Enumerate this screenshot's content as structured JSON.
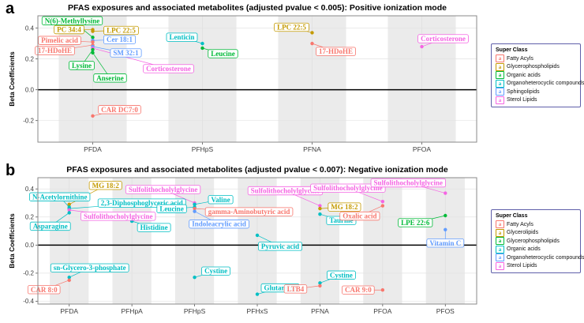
{
  "chart_data": [
    {
      "type": "scatter",
      "panel_letter": "a",
      "title": "PFAS exposures and associated metabolites (adjusted pvalue < 0.005): Positive ionization mode",
      "ylabel": "Beta Coefficients",
      "ylim": [
        -0.34,
        0.48
      ],
      "yticks": [
        0.4,
        0.2,
        0.0,
        -0.2
      ],
      "categories": [
        "PFDA",
        "PFHpS",
        "PFNA",
        "PFOA"
      ],
      "grid": "light horizontal and vertical guides, gray column bands per category, black zero line",
      "legend": {
        "title": "Super Class",
        "position": "right",
        "entries": [
          {
            "label": "Fatty Acyls",
            "color": "#F8766D"
          },
          {
            "label": "Glycerophospholipids",
            "color": "#C49A00"
          },
          {
            "label": "Organic acids",
            "color": "#00BA38"
          },
          {
            "label": "Organoheterocyclic compounds",
            "color": "#00BFC4"
          },
          {
            "label": "Sphingolipids",
            "color": "#619CFF"
          },
          {
            "label": "Sterol Lipids",
            "color": "#F564E3"
          }
        ]
      },
      "points": [
        {
          "label": "PC 34:4",
          "super_class": "Glycerophospholipids",
          "category": "PFDA",
          "beta": 0.39,
          "label_offset": [
            -30,
            0
          ]
        },
        {
          "label": "LPC 22:5",
          "super_class": "Glycerophospholipids",
          "category": "PFDA",
          "beta": 0.38,
          "label_offset": [
            36,
            -1
          ]
        },
        {
          "label": "N(6)-Methyllysine",
          "super_class": "Organic acids",
          "category": "PFDA",
          "beta": 0.34,
          "label_offset": [
            -26,
            -21
          ]
        },
        {
          "label": "Cer 18:1",
          "super_class": "Sphingolipids",
          "category": "PFDA",
          "beta": 0.32,
          "label_offset": [
            34,
            -1
          ]
        },
        {
          "label": "Pimelic acid",
          "super_class": "Fatty Acyls",
          "category": "PFDA",
          "beta": 0.31,
          "label_offset": [
            -42,
            -2
          ]
        },
        {
          "label": "17-HDoHE",
          "super_class": "Fatty Acyls",
          "category": "PFDA",
          "beta": 0.29,
          "label_offset": [
            -48,
            7
          ]
        },
        {
          "label": "SM 32:1",
          "super_class": "Sphingolipids",
          "category": "PFDA",
          "beta": 0.28,
          "label_offset": [
            42,
            8
          ]
        },
        {
          "label": "Corticosterone",
          "super_class": "Sterol Lipids",
          "category": "PFDA",
          "beta": 0.27,
          "label_offset": [
            96,
            26
          ]
        },
        {
          "label": "Lysine",
          "super_class": "Organic acids",
          "category": "PFDA",
          "beta": 0.26,
          "label_offset": [
            -14,
            20
          ]
        },
        {
          "label": "Anserine",
          "super_class": "Organic acids",
          "category": "PFDA",
          "beta": 0.24,
          "label_offset": [
            22,
            32
          ]
        },
        {
          "label": "CAR DC7:0",
          "super_class": "Fatty Acyls",
          "category": "PFDA",
          "beta": -0.17,
          "label_offset": [
            34,
            -8
          ]
        },
        {
          "label": "Lenticin",
          "super_class": "Organoheterocyclic compounds",
          "category": "PFHpS",
          "beta": 0.3,
          "label_offset": [
            -26,
            -8
          ]
        },
        {
          "label": "Leucine",
          "super_class": "Organic acids",
          "category": "PFHpS",
          "beta": 0.27,
          "label_offset": [
            26,
            7
          ]
        },
        {
          "label": "LPC 22:5",
          "super_class": "Glycerophospholipids",
          "category": "PFNA",
          "beta": 0.37,
          "label_offset": [
            -26,
            -7
          ]
        },
        {
          "label": "17-HDoHE",
          "super_class": "Fatty Acyls",
          "category": "PFNA",
          "beta": 0.3,
          "label_offset": [
            30,
            10
          ]
        },
        {
          "label": "Corticosterone",
          "super_class": "Sterol Lipids",
          "category": "PFOA",
          "beta": 0.28,
          "label_offset": [
            27,
            -10
          ]
        }
      ]
    },
    {
      "type": "scatter",
      "panel_letter": "b",
      "title": "PFAS exposures and associated metabolites (adjusted pvalue < 0.007): Negative ionization mode",
      "ylabel": "Beta Coefficients",
      "ylim": [
        -0.42,
        0.48
      ],
      "yticks": [
        0.4,
        0.2,
        0.0,
        -0.2,
        -0.4
      ],
      "categories": [
        "PFDA",
        "PFHpA",
        "PFHpS",
        "PFHxS",
        "PFNA",
        "PFOA",
        "PFOS"
      ],
      "grid": "light horizontal and vertical guides, gray column bands per category, black zero line",
      "legend": {
        "title": "Super Class",
        "position": "right",
        "entries": [
          {
            "label": "Fatty Acyls",
            "color": "#F8766D"
          },
          {
            "label": "Glycerolipids",
            "color": "#C49A00"
          },
          {
            "label": "Glycerophospholipids",
            "color": "#00BA38"
          },
          {
            "label": "Organic acids",
            "color": "#00BFC4"
          },
          {
            "label": "Organoheterocyclic compounds",
            "color": "#619CFF"
          },
          {
            "label": "Sterol Lipids",
            "color": "#F564E3"
          }
        ]
      },
      "points": [
        {
          "label": "MG 18:2",
          "super_class": "Glycerolipids",
          "category": "PFDA",
          "beta": 0.29,
          "label_offset": [
            46,
            -24
          ]
        },
        {
          "label": "N-Acetylornithine",
          "super_class": "Organic acids",
          "category": "PFDA",
          "beta": 0.27,
          "label_offset": [
            -12,
            -13
          ]
        },
        {
          "label": "2,3-Diphosphoglyceric acid",
          "super_class": "Organic acids",
          "category": "PFDA",
          "beta": 0.26,
          "label_offset": [
            92,
            -7
          ]
        },
        {
          "label": "Sulfolithocholylglycine",
          "super_class": "Sterol Lipids",
          "category": "PFDA",
          "beta": 0.25,
          "label_offset": [
            62,
            8
          ]
        },
        {
          "label": "Asparagine",
          "super_class": "Organic acids",
          "category": "PFDA",
          "beta": 0.23,
          "label_offset": [
            -24,
            17
          ]
        },
        {
          "label": "sn-Glycero-3-phosphate",
          "super_class": "Organic acids",
          "category": "PFDA",
          "beta": -0.23,
          "label_offset": [
            26,
            -12
          ]
        },
        {
          "label": "CAR 8:0",
          "super_class": "Fatty Acyls",
          "category": "PFDA",
          "beta": -0.25,
          "label_offset": [
            -32,
            12
          ]
        },
        {
          "label": "Histidine",
          "super_class": "Organic acids",
          "category": "PFHpA",
          "beta": 0.17,
          "label_offset": [
            28,
            8
          ]
        },
        {
          "label": "Sulfolithocholylglycine",
          "super_class": "Sterol Lipids",
          "category": "PFHpS",
          "beta": 0.3,
          "label_offset": [
            -40,
            -17
          ]
        },
        {
          "label": "Valine",
          "super_class": "Organic acids",
          "category": "PFHpS",
          "beta": 0.29,
          "label_offset": [
            33,
            -6
          ]
        },
        {
          "label": "Leucine",
          "super_class": "Organic acids",
          "category": "PFHpS",
          "beta": 0.27,
          "label_offset": [
            -29,
            2
          ]
        },
        {
          "label": "gamma-Aminobutyric acid",
          "super_class": "Fatty Acyls",
          "category": "PFHpS",
          "beta": 0.26,
          "label_offset": [
            69,
            4
          ]
        },
        {
          "label": "Indoleacrylic acid",
          "super_class": "Organoheterocyclic compounds",
          "category": "PFHpS",
          "beta": 0.24,
          "label_offset": [
            31,
            16
          ]
        },
        {
          "label": "Cystine",
          "super_class": "Organic acids",
          "category": "PFHpS",
          "beta": -0.23,
          "label_offset": [
            27,
            -8
          ]
        },
        {
          "label": "Pyruvic acid",
          "super_class": "Organic acids",
          "category": "PFHxS",
          "beta": 0.07,
          "label_offset": [
            29,
            14
          ]
        },
        {
          "label": "Glutamine",
          "super_class": "Organic acids",
          "category": "PFHxS",
          "beta": -0.35,
          "label_offset": [
            29,
            -8
          ]
        },
        {
          "label": "Sulfolithocholylglycine",
          "super_class": "Sterol Lipids",
          "category": "PFNA",
          "beta": 0.28,
          "label_offset": [
            -44,
            -19
          ]
        },
        {
          "label": "MG 18:2",
          "super_class": "Glycerolipids",
          "category": "PFNA",
          "beta": 0.26,
          "label_offset": [
            31,
            -2
          ]
        },
        {
          "label": "Taurine",
          "super_class": "Organic acids",
          "category": "PFNA",
          "beta": 0.22,
          "label_offset": [
            27,
            8
          ]
        },
        {
          "label": "Cystine",
          "super_class": "Organic acids",
          "category": "PFNA",
          "beta": -0.27,
          "label_offset": [
            27,
            -10
          ]
        },
        {
          "label": "LTB4",
          "super_class": "Fatty Acyls",
          "category": "PFNA",
          "beta": -0.29,
          "label_offset": [
            -31,
            4
          ]
        },
        {
          "label": "Sulfolithocholylglycine",
          "super_class": "Sterol Lipids",
          "category": "PFOA",
          "beta": 0.31,
          "label_offset": [
            -44,
            -17
          ]
        },
        {
          "label": "Oxalic acid",
          "super_class": "Fatty Acyls",
          "category": "PFOA",
          "beta": 0.28,
          "label_offset": [
            -29,
            13
          ]
        },
        {
          "label": "CAR 9:0",
          "super_class": "Fatty Acyls",
          "category": "PFOA",
          "beta": -0.32,
          "label_offset": [
            -31,
            0
          ]
        },
        {
          "label": "Sulfolithocholylglycine",
          "super_class": "Sterol Lipids",
          "category": "PFOS",
          "beta": 0.37,
          "label_offset": [
            -47,
            -13
          ]
        },
        {
          "label": "LPE 22:6",
          "super_class": "Glycerophospholipids",
          "category": "PFOS",
          "beta": 0.21,
          "label_offset": [
            -38,
            9
          ]
        },
        {
          "label": "Vitamin C",
          "super_class": "Organoheterocyclic compounds",
          "category": "PFOS",
          "beta": 0.11,
          "label_offset": [
            0,
            17
          ]
        }
      ]
    }
  ]
}
